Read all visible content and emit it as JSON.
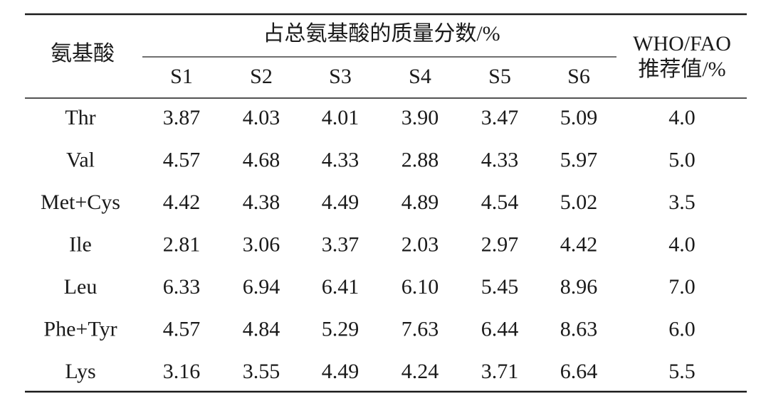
{
  "table": {
    "header": {
      "first": "氨基酸",
      "group": "占总氨基酸的质量分数/%",
      "samples": [
        "S1",
        "S2",
        "S3",
        "S4",
        "S5",
        "S6"
      ],
      "last": [
        "WHO/FAO",
        "推荐值/%"
      ]
    },
    "rows": [
      [
        "Thr",
        "3.87",
        "4.03",
        "4.01",
        "3.90",
        "3.47",
        "5.09",
        "4.0"
      ],
      [
        "Val",
        "4.57",
        "4.68",
        "4.33",
        "2.88",
        "4.33",
        "5.97",
        "5.0"
      ],
      [
        "Met+Cys",
        "4.42",
        "4.38",
        "4.49",
        "4.89",
        "4.54",
        "5.02",
        "3.5"
      ],
      [
        "Ile",
        "2.81",
        "3.06",
        "3.37",
        "2.03",
        "2.97",
        "4.42",
        "4.0"
      ],
      [
        "Leu",
        "6.33",
        "6.94",
        "6.41",
        "6.10",
        "5.45",
        "8.96",
        "7.0"
      ],
      [
        "Phe+Tyr",
        "4.57",
        "4.84",
        "5.29",
        "7.63",
        "6.44",
        "8.63",
        "6.0"
      ],
      [
        "Lys",
        "3.16",
        "3.55",
        "4.49",
        "4.24",
        "3.71",
        "6.64",
        "5.5"
      ]
    ]
  }
}
